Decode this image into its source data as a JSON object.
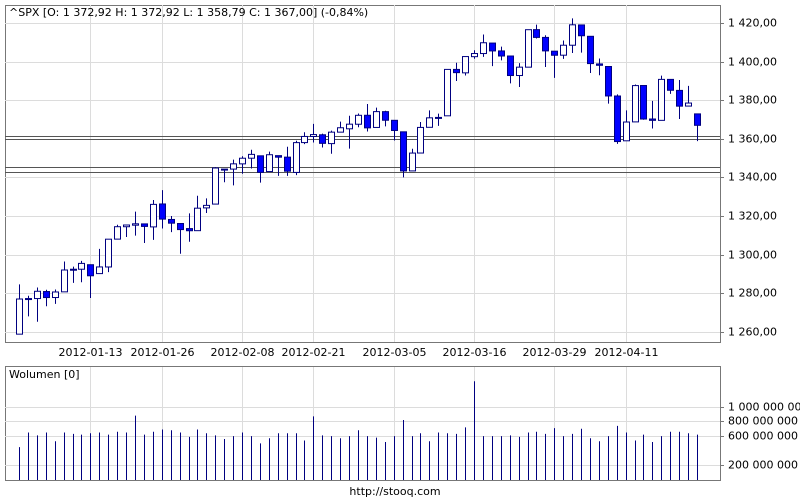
{
  "chart_data": [
    {
      "type": "candlestick",
      "title": "^SPX [O: 1 372,92  H: 1 372,92  L: 1 358,79  C: 1 367,00] (-0,84%)",
      "categories": [
        null,
        null,
        null,
        null,
        null,
        null,
        null,
        null,
        "2012-01-13",
        null,
        null,
        null,
        null,
        null,
        null,
        null,
        "2012-01-26",
        null,
        null,
        null,
        null,
        null,
        null,
        null,
        null,
        "2012-02-08",
        null,
        null,
        null,
        null,
        null,
        null,
        null,
        "2012-02-21",
        null,
        null,
        null,
        null,
        null,
        null,
        null,
        null,
        "2012-03-05",
        null,
        null,
        null,
        null,
        null,
        null,
        null,
        null,
        "2012-03-16",
        null,
        null,
        null,
        null,
        null,
        null,
        null,
        null,
        "2012-03-29",
        null,
        null,
        null,
        null,
        null,
        null,
        null,
        "2012-04-11",
        null,
        null,
        null,
        null,
        null,
        null,
        null,
        null
      ],
      "open": [
        1258.86,
        1277.03,
        1277.3,
        1280.93,
        1277.83,
        1280.77,
        1292.02,
        1292.48,
        1294.82,
        1290.22,
        1293.65,
        1308.07,
        1314.49,
        1315.29,
        1315.96,
        1314.4,
        1326.28,
        1318.25,
        1316.16,
        1313.53,
        1312.45,
        1324.24,
        1326.21,
        1344.32,
        1344.33,
        1347.04,
        1349.97,
        1351.21,
        1343.06,
        1351.3,
        1350.52,
        1342.61,
        1358.06,
        1361.22,
        1362.11,
        1357.53,
        1363.46,
        1365.2,
        1367.56,
        1372.2,
        1365.9,
        1374.09,
        1369.59,
        1363.63,
        1343.39,
        1352.65,
        1365.97,
        1370.78,
        1371.92,
        1395.95,
        1394.17,
        1402.55,
        1404.17,
        1409.59,
        1405.52,
        1402.89,
        1392.78,
        1397.11,
        1416.55,
        1412.52,
        1405.39,
        1403.31,
        1408.47,
        1418.98,
        1413.09,
        1398.79,
        1397.45,
        1382.18,
        1358.98,
        1368.77,
        1387.61,
        1370.27,
        1369.57,
        1390.78,
        1385.08,
        1376.96,
        1372.92
      ],
      "high": [
        1284.62,
        1278.73,
        1283.05,
        1281.84,
        1281.99,
        1296.46,
        1293.8,
        1296.82,
        1294.82,
        1303.0,
        1308.11,
        1315.49,
        1315.38,
        1322.28,
        1315.96,
        1328.3,
        1333.47,
        1320.06,
        1316.16,
        1321.41,
        1330.52,
        1329.19,
        1345.34,
        1344.36,
        1349.24,
        1351.0,
        1354.32,
        1351.21,
        1353.35,
        1351.3,
        1355.87,
        1359.02,
        1363.4,
        1367.76,
        1362.7,
        1364.24,
        1368.92,
        1371.94,
        1373.09,
        1378.04,
        1376.17,
        1374.53,
        1369.59,
        1363.63,
        1354.85,
        1368.72,
        1374.76,
        1373.04,
        1396.13,
        1399.42,
        1402.63,
        1405.88,
        1414.0,
        1409.59,
        1407.75,
        1402.89,
        1399.18,
        1416.58,
        1419.15,
        1413.65,
        1405.39,
        1410.89,
        1422.38,
        1419.0,
        1413.09,
        1401.6,
        1397.45,
        1383.01,
        1374.71,
        1388.13,
        1387.61,
        1379.66,
        1392.76,
        1390.78,
        1390.46,
        1387.4,
        1372.92
      ],
      "low": [
        1258.86,
        1268.1,
        1265.26,
        1273.34,
        1274.55,
        1280.77,
        1285.41,
        1285.77,
        1277.58,
        1290.22,
        1290.99,
        1308.07,
        1309.17,
        1309.89,
        1306.06,
        1307.65,
        1313.6,
        1311.72,
        1300.49,
        1306.69,
        1312.45,
        1321.57,
        1326.21,
        1337.52,
        1335.92,
        1341.95,
        1344.63,
        1337.35,
        1343.06,
        1340.83,
        1340.8,
        1341.22,
        1357.24,
        1358.11,
        1355.53,
        1352.28,
        1363.46,
        1354.92,
        1365.97,
        1363.81,
        1365.9,
        1366.42,
        1359.13,
        1340.03,
        1343.39,
        1352.65,
        1365.97,
        1366.69,
        1371.92,
        1389.97,
        1392.78,
        1401.47,
        1402.43,
        1397.68,
        1400.64,
        1388.73,
        1386.87,
        1397.11,
        1411.95,
        1397.2,
        1391.56,
        1401.42,
        1404.46,
        1404.62,
        1394.09,
        1392.92,
        1378.24,
        1357.38,
        1358.98,
        1368.77,
        1369.85,
        1365.38,
        1369.57,
        1383.29,
        1370.3,
        1376.96,
        1358.79
      ],
      "close": [
        1277.06,
        1277.3,
        1281.06,
        1277.81,
        1280.7,
        1292.08,
        1292.48,
        1295.5,
        1289.09,
        1293.67,
        1308.04,
        1314.5,
        1315.38,
        1316.0,
        1314.65,
        1326.06,
        1318.43,
        1316.33,
        1313.01,
        1312.41,
        1324.09,
        1325.54,
        1344.9,
        1344.33,
        1347.05,
        1349.96,
        1351.95,
        1342.64,
        1351.77,
        1350.5,
        1343.23,
        1358.04,
        1361.23,
        1362.21,
        1357.66,
        1363.46,
        1365.74,
        1367.59,
        1372.18,
        1365.68,
        1374.09,
        1369.63,
        1364.33,
        1343.36,
        1352.63,
        1365.91,
        1370.87,
        1371.09,
        1395.95,
        1394.28,
        1402.6,
        1404.17,
        1409.75,
        1405.52,
        1402.89,
        1392.78,
        1397.11,
        1416.51,
        1412.52,
        1405.54,
        1403.28,
        1408.47,
        1419.04,
        1413.38,
        1398.96,
        1398.08,
        1382.2,
        1358.59,
        1368.71,
        1387.57,
        1370.26,
        1369.57,
        1390.78,
        1385.14,
        1376.92,
        1378.53,
        1367.0
      ],
      "up_color": "#ffffff",
      "down_color": "#0000ff",
      "wick_color": "#000080",
      "reference_lines": [
        1361.5,
        1359.9,
        1345.4,
        1342.8
      ],
      "ylim": [
        1254.8,
        1429.3
      ],
      "yticks": [
        {
          "value": 1260,
          "label": "1 260,00"
        },
        {
          "value": 1280,
          "label": "1 280,00"
        },
        {
          "value": 1300,
          "label": "1 300,00"
        },
        {
          "value": 1320,
          "label": "1 320,00"
        },
        {
          "value": 1340,
          "label": "1 340,00"
        },
        {
          "value": 1360,
          "label": "1 360,00"
        },
        {
          "value": 1380,
          "label": "1 380,00"
        },
        {
          "value": 1400,
          "label": "1 400,00"
        },
        {
          "value": 1420,
          "label": "1 420,00"
        }
      ],
      "grid": true
    },
    {
      "type": "bar",
      "title": "Wolumen [0]",
      "color": "#000080",
      "values": [
        450000000,
        650000000,
        610000000,
        650000000,
        530000000,
        650000000,
        630000000,
        620000000,
        640000000,
        650000000,
        620000000,
        660000000,
        650000000,
        880000000,
        620000000,
        660000000,
        690000000,
        680000000,
        650000000,
        590000000,
        690000000,
        640000000,
        610000000,
        560000000,
        600000000,
        650000000,
        600000000,
        500000000,
        570000000,
        640000000,
        640000000,
        640000000,
        540000000,
        870000000,
        610000000,
        600000000,
        570000000,
        600000000,
        680000000,
        600000000,
        580000000,
        520000000,
        600000000,
        820000000,
        600000000,
        640000000,
        530000000,
        650000000,
        640000000,
        630000000,
        720000000,
        1350000000,
        600000000,
        600000000,
        600000000,
        610000000,
        590000000,
        650000000,
        660000000,
        630000000,
        710000000,
        600000000,
        630000000,
        700000000,
        570000000,
        530000000,
        600000000,
        740000000,
        650000000,
        540000000,
        620000000,
        520000000,
        600000000,
        660000000,
        660000000,
        640000000,
        620000000
      ],
      "ylim": [
        0,
        1545000000
      ],
      "yticks": [
        {
          "value": 200000000,
          "label": "200 000 000"
        },
        {
          "value": 600000000,
          "label": "600 000 000"
        },
        {
          "value": 800000000,
          "label": "800 000 000"
        },
        {
          "value": 1000000000,
          "label": "1 000 000 000"
        }
      ],
      "grid": true,
      "footer": "http://stooq.com"
    }
  ]
}
